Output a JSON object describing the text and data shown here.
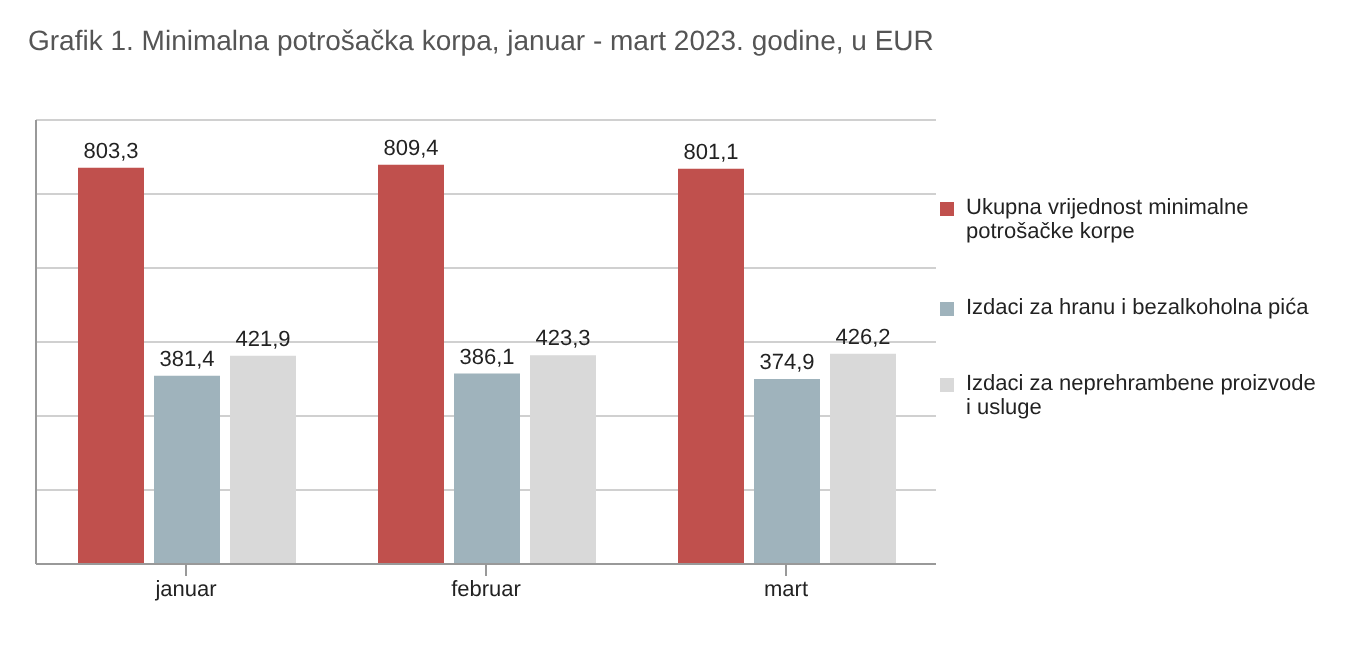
{
  "chart_data": {
    "type": "bar",
    "title": "Grafik 1. Minimalna potrošačka korpa, januar - mart 2023. godine, u EUR",
    "categories": [
      "januar",
      "februar",
      "mart"
    ],
    "series": [
      {
        "name": "Ukupna vrijednost minimalne potrošačke korpe",
        "color": "#c0504d",
        "values": [
          803.3,
          809.4,
          801.1
        ],
        "value_labels": [
          "803,3",
          "809,4",
          "801,1"
        ]
      },
      {
        "name": "Izdaci za hranu i bezalkoholna pića",
        "color": "#9fb3bc",
        "values": [
          381.4,
          386.1,
          374.9
        ],
        "value_labels": [
          "381,4",
          "386,1",
          "374,9"
        ]
      },
      {
        "name": "Izdaci za neprehrambene proizvode i usluge",
        "color": "#d9d9d9",
        "values": [
          421.9,
          423.3,
          426.2
        ],
        "value_labels": [
          "421,9",
          "423,3",
          "426,2"
        ]
      }
    ],
    "tick_labels": "x",
    "grid": "y",
    "legend": "right"
  }
}
